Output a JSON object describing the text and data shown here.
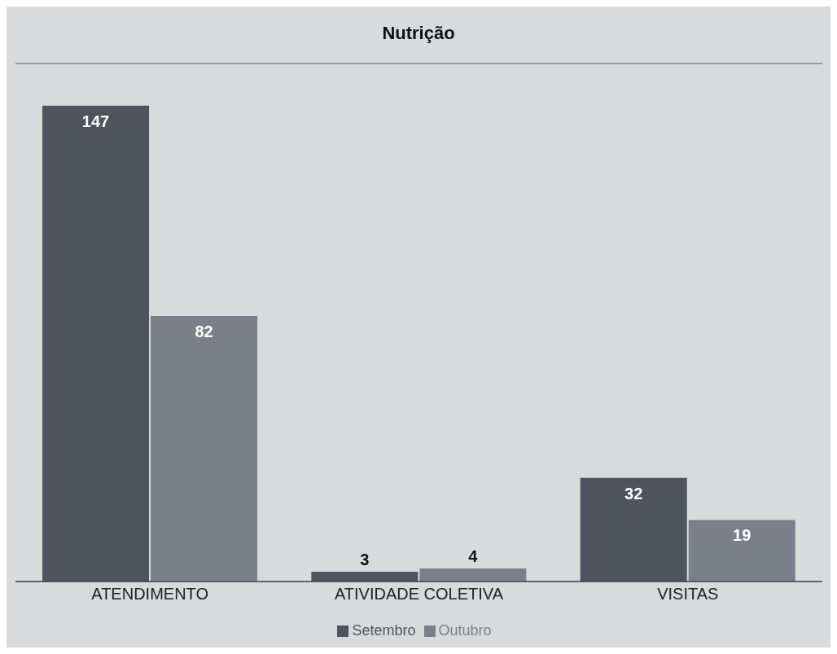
{
  "chart_data": {
    "type": "bar",
    "title": "Nutrição",
    "categories": [
      "ATENDIMENTO",
      "ATIVIDADE COLETIVA",
      "VISITAS"
    ],
    "series": [
      {
        "name": "Setembro",
        "color": "#4f535c",
        "values": [
          147,
          3,
          32
        ]
      },
      {
        "name": "Outubro",
        "color": "#7b7f87",
        "values": [
          82,
          4,
          19
        ]
      }
    ],
    "ylim": [
      0,
      160
    ],
    "tick_labels": "x",
    "grid": "y",
    "legend": "bottom",
    "data_labels": true
  }
}
